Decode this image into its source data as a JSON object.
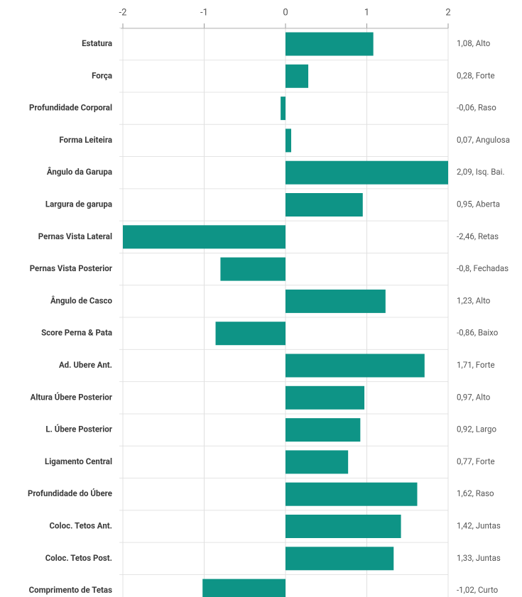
{
  "chart_data": {
    "type": "bar",
    "orientation": "horizontal",
    "categories": [
      "Estatura",
      "Força",
      "Profundidade Corporal",
      "Forma Leiteira",
      "Ângulo da Garupa",
      "Largura de garupa",
      "Pernas Vista Lateral",
      "Pernas Vista Posterior",
      "Ângulo de Casco",
      "Score Perna & Pata",
      "Ad. Ubere Ant.",
      "Altura Úbere Posterior",
      "L. Úbere Posterior",
      "Ligamento Central",
      "Profundidade do Úbere",
      "Coloc. Tetos Ant.",
      "Coloc. Tetos Post.",
      "Comprimento de Tetas"
    ],
    "values": [
      1.08,
      0.28,
      -0.06,
      0.07,
      2.09,
      0.95,
      -2.46,
      -0.8,
      1.23,
      -0.86,
      1.71,
      0.97,
      0.92,
      0.77,
      1.62,
      1.42,
      1.33,
      -1.02
    ],
    "value_labels": [
      "1,08, Alto",
      "0,28, Forte",
      "-0,06, Raso",
      "0,07, Angulosa",
      "2,09, Isq. Bai.",
      "0,95, Aberta",
      "-2,46, Retas",
      "-0,8, Fechadas",
      "1,23, Alto",
      "-0,86, Baixo",
      "1,71, Forte",
      "0,97, Alto",
      "0,92, Largo",
      "0,77, Forte",
      "1,62, Raso",
      "1,42, Juntas",
      "1,33, Juntas",
      "-1,02, Curto"
    ],
    "color": "#0e9486",
    "xlim": [
      -2,
      2
    ],
    "xticks": [
      -2,
      -1,
      0,
      1,
      2
    ],
    "grid": true
  }
}
